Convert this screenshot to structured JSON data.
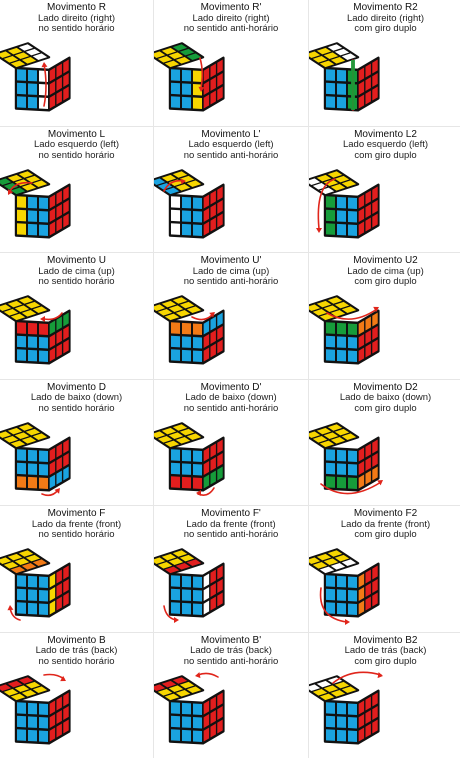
{
  "colors": {
    "W": "#ffffff",
    "Y": "#f7d600",
    "R": "#e21e1e",
    "O": "#f27a16",
    "B": "#1aa3e0",
    "G": "#169c3a",
    "K": "#111111",
    "arrow": "#e0251b"
  },
  "moves": [
    {
      "title": "Movimento R",
      "side": "Lado direito (right)",
      "dir": "no sentido horário",
      "top": "YYWYYWYYW",
      "front": "BBWBBWBBW",
      "right": "RRRRRRRRR",
      "arrow": "r-up"
    },
    {
      "title": "Movimento R'",
      "side": "Lado direito (right)",
      "dir": "no sentido anti-horário",
      "top": "YYGYYGYYG",
      "front": "BBYBBYBBY",
      "right": "RRRRRRRRR",
      "arrow": "r-down"
    },
    {
      "title": "Movimento R2",
      "side": "Lado direito (right)",
      "dir": "com giro duplo",
      "top": "YYWYYWYYW",
      "front": "BBGBBGBBG",
      "right": "RRRRRRRRR",
      "arrow": "r-double"
    },
    {
      "title": "Movimento L",
      "side": "Lado esquerdo (left)",
      "dir": "no sentido horário",
      "top": "GYYGYYGYY",
      "front": "YBBYBBYBB",
      "right": "RRRRRRRRR",
      "arrow": "l-down"
    },
    {
      "title": "Movimento L'",
      "side": "Lado esquerdo (left)",
      "dir": "no sentido anti-horário",
      "top": "BYYBYYBYY",
      "front": "WBBWBBWBB",
      "right": "RRRRRRRRR",
      "arrow": "l-up"
    },
    {
      "title": "Movimento L2",
      "side": "Lado esquerdo (left)",
      "dir": "com giro duplo",
      "top": "WYYWYYWYY",
      "front": "GBBGBBGBB",
      "right": "RRRRRRRRR",
      "arrow": "l-double"
    },
    {
      "title": "Movimento U",
      "side": "Lado de cima (up)",
      "dir": "no sentido horário",
      "top": "YYYYYYYYY",
      "front": "RRRBBBBBB",
      "right": "GGGRRRRRR",
      "arrow": "u-left"
    },
    {
      "title": "Movimento U'",
      "side": "Lado de cima (up)",
      "dir": "no sentido anti-horário",
      "top": "YYYYYYYYY",
      "front": "OOOBBBBBB",
      "right": "BBBRRRRRR",
      "arrow": "u-right"
    },
    {
      "title": "Movimento U2",
      "side": "Lado de cima (up)",
      "dir": "com giro duplo",
      "top": "YYYYYYYYY",
      "front": "GGGBBBBBB",
      "right": "OOORRRRRR",
      "arrow": "u-double"
    },
    {
      "title": "Movimento D",
      "side": "Lado de baixo (down)",
      "dir": "no sentido horário",
      "top": "YYYYYYYYY",
      "front": "BBBBBBOOO",
      "right": "RRRRRRBBB",
      "arrow": "d-right"
    },
    {
      "title": "Movimento D'",
      "side": "Lado de baixo (down)",
      "dir": "no sentido anti-horário",
      "top": "YYYYYYYYY",
      "front": "BBBBBBRRR",
      "right": "RRRRRRGGG",
      "arrow": "d-left"
    },
    {
      "title": "Movimento D2",
      "side": "Lado de baixo (down)",
      "dir": "com giro duplo",
      "top": "YYYYYYYYY",
      "front": "BBBBBBGGG",
      "right": "RRRRRROOO",
      "arrow": "d-double"
    },
    {
      "title": "Movimento F",
      "side": "Lado da frente (front)",
      "dir": "no sentido horário",
      "top": "YYYYYYOOO",
      "front": "BBBBBBBBB",
      "right": "YRRYRRYRR",
      "arrow": "f-cw"
    },
    {
      "title": "Movimento F'",
      "side": "Lado da frente (front)",
      "dir": "no sentido anti-horário",
      "top": "YYYYYYRRR",
      "front": "BBBBBBBBB",
      "right": "WRRWRRWRR",
      "arrow": "f-ccw"
    },
    {
      "title": "Movimento F2",
      "side": "Lado da frente (front)",
      "dir": "com giro duplo",
      "top": "YYYYYYWWW",
      "front": "BBBBBBBBB",
      "right": "ORRORRORR",
      "arrow": "f-double"
    },
    {
      "title": "Movimento B",
      "side": "Lado de trás (back)",
      "dir": "no sentido horário",
      "top": "RRRYYYYYY",
      "front": "BBBBBBBBB",
      "right": "RRRRRRRRR",
      "arrow": "b-cw"
    },
    {
      "title": "Movimento B'",
      "side": "Lado de trás (back)",
      "dir": "no sentido anti-horário",
      "top": "RRRYYYYYY",
      "front": "BBBBBBBBB",
      "right": "RRRRRRRRR",
      "arrow": "b-ccw"
    },
    {
      "title": "Movimento B2",
      "side": "Lado de trás (back)",
      "dir": "com giro duplo",
      "top": "WWWYYYYYY",
      "front": "BBBBBBBBB",
      "right": "RRRRRRRRR",
      "arrow": "b-double"
    }
  ]
}
